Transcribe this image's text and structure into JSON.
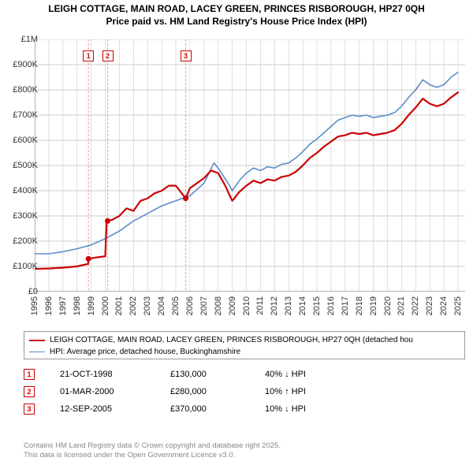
{
  "title_line1": "LEIGH COTTAGE, MAIN ROAD, LACEY GREEN, PRINCES RISBOROUGH, HP27 0QH",
  "title_line2": "Price paid vs. HM Land Registry's House Price Index (HPI)",
  "chart": {
    "type": "line",
    "background_color": "#ffffff",
    "grid_color": "#cccccc",
    "axis_color": "#666666",
    "x_min": 1995,
    "x_max": 2025.5,
    "y_min": 0,
    "y_max": 1000000,
    "y_ticks": [
      0,
      100000,
      200000,
      300000,
      400000,
      500000,
      600000,
      700000,
      800000,
      900000,
      1000000
    ],
    "y_tick_labels": [
      "£0",
      "£100K",
      "£200K",
      "£300K",
      "£400K",
      "£500K",
      "£600K",
      "£700K",
      "£800K",
      "£900K",
      "£1M"
    ],
    "x_ticks": [
      1995,
      1996,
      1997,
      1998,
      1999,
      2000,
      2001,
      2002,
      2003,
      2004,
      2005,
      2006,
      2007,
      2008,
      2009,
      2010,
      2011,
      2012,
      2013,
      2014,
      2015,
      2016,
      2017,
      2018,
      2019,
      2020,
      2021,
      2022,
      2023,
      2024,
      2025
    ],
    "x_tick_labels": [
      "1995",
      "1996",
      "1997",
      "1998",
      "1999",
      "2000",
      "2001",
      "2002",
      "2003",
      "2004",
      "2005",
      "2006",
      "2007",
      "2008",
      "2009",
      "2010",
      "2011",
      "2012",
      "2013",
      "2014",
      "2015",
      "2016",
      "2017",
      "2018",
      "2019",
      "2020",
      "2021",
      "2022",
      "2023",
      "2024",
      "2025"
    ],
    "series": [
      {
        "name": "price_paid",
        "color": "#cc0000",
        "width": 2.2,
        "label": "LEIGH COTTAGE, MAIN ROAD, LACEY GREEN, PRINCES RISBOROUGH, HP27 0QH (detached hou",
        "points": [
          [
            1995,
            90000
          ],
          [
            1996,
            92000
          ],
          [
            1997,
            95000
          ],
          [
            1998,
            100000
          ],
          [
            1998.8,
            110000
          ],
          [
            1998.81,
            130000
          ],
          [
            1999.3,
            135000
          ],
          [
            2000.0,
            140000
          ],
          [
            2000.1,
            280000
          ],
          [
            2000.5,
            285000
          ],
          [
            2001,
            300000
          ],
          [
            2001.5,
            330000
          ],
          [
            2002,
            320000
          ],
          [
            2002.5,
            360000
          ],
          [
            2003,
            370000
          ],
          [
            2003.5,
            390000
          ],
          [
            2004,
            400000
          ],
          [
            2004.5,
            420000
          ],
          [
            2005,
            420000
          ],
          [
            2005.7,
            370000
          ],
          [
            2006,
            410000
          ],
          [
            2006.5,
            430000
          ],
          [
            2007,
            450000
          ],
          [
            2007.5,
            480000
          ],
          [
            2008,
            470000
          ],
          [
            2008.5,
            420000
          ],
          [
            2009,
            360000
          ],
          [
            2009.5,
            395000
          ],
          [
            2010,
            420000
          ],
          [
            2010.5,
            440000
          ],
          [
            2011,
            430000
          ],
          [
            2011.5,
            445000
          ],
          [
            2012,
            440000
          ],
          [
            2012.5,
            455000
          ],
          [
            2013,
            460000
          ],
          [
            2013.5,
            475000
          ],
          [
            2014,
            500000
          ],
          [
            2014.5,
            530000
          ],
          [
            2015,
            550000
          ],
          [
            2015.5,
            575000
          ],
          [
            2016,
            595000
          ],
          [
            2016.5,
            615000
          ],
          [
            2017,
            620000
          ],
          [
            2017.5,
            630000
          ],
          [
            2018,
            625000
          ],
          [
            2018.5,
            630000
          ],
          [
            2019,
            620000
          ],
          [
            2019.5,
            625000
          ],
          [
            2020,
            630000
          ],
          [
            2020.5,
            640000
          ],
          [
            2021,
            665000
          ],
          [
            2021.5,
            700000
          ],
          [
            2022,
            730000
          ],
          [
            2022.5,
            765000
          ],
          [
            2023,
            745000
          ],
          [
            2023.5,
            735000
          ],
          [
            2024,
            745000
          ],
          [
            2024.5,
            770000
          ],
          [
            2025,
            790000
          ]
        ]
      },
      {
        "name": "hpi",
        "color": "#5b8dc8",
        "width": 1.6,
        "label": "HPI: Average price, detached house, Buckinghamshire",
        "points": [
          [
            1995,
            150000
          ],
          [
            1996,
            150000
          ],
          [
            1997,
            158000
          ],
          [
            1998,
            170000
          ],
          [
            1999,
            185000
          ],
          [
            2000,
            210000
          ],
          [
            2001,
            240000
          ],
          [
            2002,
            280000
          ],
          [
            2003,
            310000
          ],
          [
            2004,
            340000
          ],
          [
            2005,
            360000
          ],
          [
            2006,
            380000
          ],
          [
            2007,
            430000
          ],
          [
            2007.7,
            510000
          ],
          [
            2008,
            490000
          ],
          [
            2008.7,
            430000
          ],
          [
            2009,
            400000
          ],
          [
            2009.5,
            440000
          ],
          [
            2010,
            470000
          ],
          [
            2010.5,
            490000
          ],
          [
            2011,
            480000
          ],
          [
            2011.5,
            495000
          ],
          [
            2012,
            490000
          ],
          [
            2012.5,
            505000
          ],
          [
            2013,
            510000
          ],
          [
            2013.5,
            530000
          ],
          [
            2014,
            555000
          ],
          [
            2014.5,
            585000
          ],
          [
            2015,
            605000
          ],
          [
            2015.5,
            630000
          ],
          [
            2016,
            655000
          ],
          [
            2016.5,
            680000
          ],
          [
            2017,
            690000
          ],
          [
            2017.5,
            700000
          ],
          [
            2018,
            695000
          ],
          [
            2018.5,
            700000
          ],
          [
            2019,
            690000
          ],
          [
            2019.5,
            695000
          ],
          [
            2020,
            700000
          ],
          [
            2020.5,
            710000
          ],
          [
            2021,
            735000
          ],
          [
            2021.5,
            770000
          ],
          [
            2022,
            800000
          ],
          [
            2022.5,
            840000
          ],
          [
            2023,
            820000
          ],
          [
            2023.5,
            810000
          ],
          [
            2024,
            820000
          ],
          [
            2024.5,
            850000
          ],
          [
            2025,
            870000
          ]
        ]
      }
    ],
    "event_markers": [
      {
        "index": "1",
        "x": 1998.81,
        "y": 130000,
        "line_color": "#e8a0a0"
      },
      {
        "index": "2",
        "x": 2000.17,
        "y": 280000,
        "line_color": "#e8a0a0"
      },
      {
        "index": "3",
        "x": 2005.7,
        "y": 370000,
        "line_color": "#e8a0a0"
      }
    ],
    "marker_dot_color": "#cc0000",
    "marker_dot_radius": 3.5
  },
  "legend": {
    "items": [
      {
        "color": "#cc0000",
        "width": 2.2,
        "label": "LEIGH COTTAGE, MAIN ROAD, LACEY GREEN, PRINCES RISBOROUGH, HP27 0QH (detached hou"
      },
      {
        "color": "#5b8dc8",
        "width": 1.6,
        "label": "HPI: Average price, detached house, Buckinghamshire"
      }
    ]
  },
  "marker_table": [
    {
      "badge": "1",
      "date": "21-OCT-1998",
      "price": "£130,000",
      "delta": "40% ↓ HPI"
    },
    {
      "badge": "2",
      "date": "01-MAR-2000",
      "price": "£280,000",
      "delta": "10% ↑ HPI"
    },
    {
      "badge": "3",
      "date": "12-SEP-2005",
      "price": "£370,000",
      "delta": "10% ↓ HPI"
    }
  ],
  "footer_line1": "Contains HM Land Registry data © Crown copyright and database right 2025.",
  "footer_line2": "This data is licensed under the Open Government Licence v3.0.",
  "colors": {
    "badge_border": "#cc0000",
    "footer_text": "#888888"
  }
}
